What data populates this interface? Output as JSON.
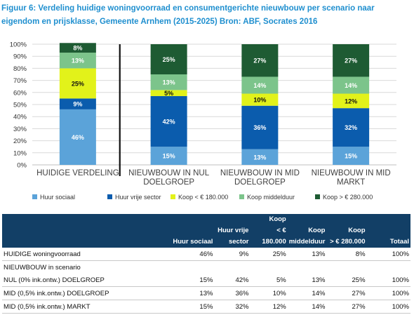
{
  "figure_title": "Figuur 6: Verdeling huidige woningvoorraad en consumentgerichte nieuwbouw per scenario naar eigendom en prijsklasse, Gemeente Arnhem (2015-2025) Bron: ABF, Socrates 2016",
  "colors": {
    "title": "#1f8fcf",
    "huur_sociaal": "#5ba3d9",
    "huur_vrije_sector": "#0b5cad",
    "koop_lt_180": "#e2f21a",
    "koop_middelduur": "#7cc48b",
    "koop_gt_280": "#1e5b33",
    "table_header": "#123f66"
  },
  "chart_data": {
    "type": "bar",
    "stacked": true,
    "categories": [
      [
        "HUIDIGE VERDELING"
      ],
      [
        "NIEUWBOUW IN NUL",
        "DOELGROEP"
      ],
      [
        "NIEUWBOUW IN MID",
        "DOELGROEP"
      ],
      [
        "NIEUWBOUW IN MID",
        "MARKT"
      ]
    ],
    "series": [
      {
        "name": "Huur sociaal",
        "values": [
          46,
          15,
          13,
          15
        ],
        "labels": [
          "46%",
          "15%",
          "13%",
          "15%"
        ]
      },
      {
        "name": "Huur vrije sector",
        "values": [
          9,
          42,
          36,
          32
        ],
        "labels": [
          "9%",
          "42%",
          "36%",
          "32%"
        ]
      },
      {
        "name": "Koop < € 180.000",
        "values": [
          25,
          5,
          10,
          12
        ],
        "labels": [
          "25%",
          "5%",
          "10%",
          "12%"
        ]
      },
      {
        "name": "Koop middelduur",
        "values": [
          13,
          13,
          14,
          14
        ],
        "labels": [
          "13%",
          "13%",
          "14%",
          "14%"
        ]
      },
      {
        "name": "Koop > € 280.000",
        "values": [
          8,
          25,
          27,
          27
        ],
        "labels": [
          "8%",
          "25%",
          "27%",
          "27%"
        ]
      }
    ],
    "ylim": [
      0,
      100
    ],
    "yticks": [
      "0%",
      "10%",
      "20%",
      "30%",
      "40%",
      "50%",
      "60%",
      "70%",
      "80%",
      "90%",
      "100%"
    ],
    "grid": true,
    "separator_after_category": 0,
    "legend_position": "bottom"
  },
  "table": {
    "headers": [
      {
        "lines": [
          ""
        ]
      },
      {
        "lines": [
          "Huur sociaal"
        ]
      },
      {
        "lines": [
          "Huur vrije",
          "sector"
        ]
      },
      {
        "lines": [
          "Koop",
          "< € 180.000"
        ]
      },
      {
        "lines": [
          "Koop",
          "middelduur"
        ]
      },
      {
        "lines": [
          "Koop",
          "> € 280.000"
        ]
      },
      {
        "lines": [
          "Totaal"
        ]
      }
    ],
    "rows": [
      {
        "label": "HUIDIGE woningvoorraad",
        "values": [
          "46%",
          "9%",
          "25%",
          "13%",
          "8%",
          "100%"
        ]
      },
      {
        "label": "NIEUWBOUW in scenario",
        "values": [
          "",
          "",
          "",
          "",
          "",
          ""
        ]
      },
      {
        "label": "NUL (0% ink.ontw.) DOELGROEP",
        "values": [
          "15%",
          "42%",
          "5%",
          "13%",
          "25%",
          "100%"
        ]
      },
      {
        "label": "MID (0,5% ink.ontw.) DOELGROEP",
        "values": [
          "13%",
          "36%",
          "10%",
          "14%",
          "27%",
          "100%"
        ]
      },
      {
        "label": "MID (0,5% ink.ontw.) MARKT",
        "values": [
          "15%",
          "32%",
          "12%",
          "14%",
          "27%",
          "100%"
        ]
      }
    ]
  }
}
